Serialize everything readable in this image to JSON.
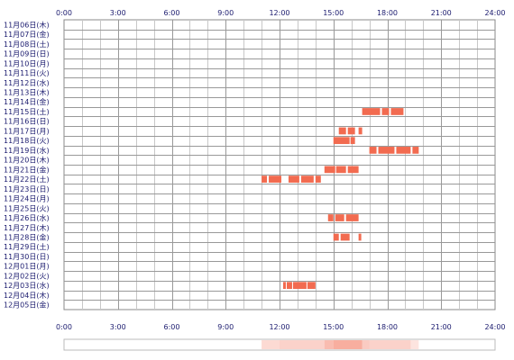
{
  "chart_data": {
    "type": "timeline",
    "x_ticks": [
      "0:00",
      "3:00",
      "6:00",
      "9:00",
      "12:00",
      "15:00",
      "18:00",
      "21:00",
      "24:00"
    ],
    "xlim": [
      0,
      24
    ],
    "grid": true,
    "bar_color": "#f26b50",
    "rows": [
      {
        "label": "11月06日(木)",
        "segments": []
      },
      {
        "label": "11月07日(金)",
        "segments": []
      },
      {
        "label": "11月08日(土)",
        "segments": []
      },
      {
        "label": "11月09日(日)",
        "segments": []
      },
      {
        "label": "11月10日(月)",
        "segments": []
      },
      {
        "label": "11月11日(火)",
        "segments": []
      },
      {
        "label": "11月12日(水)",
        "segments": []
      },
      {
        "label": "11月13日(木)",
        "segments": []
      },
      {
        "label": "11月14日(金)",
        "segments": []
      },
      {
        "label": "11月15日(土)",
        "segments": [
          [
            16.6,
            17.6
          ],
          [
            17.7,
            18.1
          ],
          [
            18.2,
            18.9
          ]
        ]
      },
      {
        "label": "11月16日(日)",
        "segments": []
      },
      {
        "label": "11月17日(月)",
        "segments": [
          [
            15.3,
            15.7
          ],
          [
            15.8,
            16.2
          ],
          [
            16.4,
            16.6
          ]
        ]
      },
      {
        "label": "11月18日(火)",
        "segments": [
          [
            15.0,
            15.9
          ],
          [
            15.95,
            16.2
          ]
        ]
      },
      {
        "label": "11月19日(水)",
        "segments": [
          [
            17.0,
            17.4
          ],
          [
            17.5,
            18.4
          ],
          [
            18.5,
            19.3
          ],
          [
            19.4,
            19.75
          ]
        ]
      },
      {
        "label": "11月20日(木)",
        "segments": []
      },
      {
        "label": "11月21日(金)",
        "segments": [
          [
            14.5,
            15.1
          ],
          [
            15.15,
            15.7
          ],
          [
            15.8,
            16.4
          ]
        ]
      },
      {
        "label": "11月22日(土)",
        "segments": [
          [
            11.0,
            11.3
          ],
          [
            11.4,
            12.1
          ],
          [
            12.5,
            13.1
          ],
          [
            13.2,
            13.9
          ],
          [
            14.0,
            14.3
          ]
        ]
      },
      {
        "label": "11月23日(日)",
        "segments": []
      },
      {
        "label": "11月24日(月)",
        "segments": []
      },
      {
        "label": "11月25日(火)",
        "segments": []
      },
      {
        "label": "11月26日(水)",
        "segments": [
          [
            14.7,
            15.0
          ],
          [
            15.1,
            15.6
          ],
          [
            15.7,
            16.4
          ]
        ]
      },
      {
        "label": "11月27日(木)",
        "segments": []
      },
      {
        "label": "11月28日(金)",
        "segments": [
          [
            15.0,
            15.3
          ],
          [
            15.4,
            15.9
          ],
          [
            16.4,
            16.55
          ]
        ]
      },
      {
        "label": "11月29日(土)",
        "segments": []
      },
      {
        "label": "11月30日(日)",
        "segments": []
      },
      {
        "label": "12月01日(月)",
        "segments": []
      },
      {
        "label": "12月02日(火)",
        "segments": []
      },
      {
        "label": "12月03日(水)",
        "segments": [
          [
            12.2,
            12.35
          ],
          [
            12.4,
            12.7
          ],
          [
            12.75,
            13.5
          ],
          [
            13.55,
            14.0
          ]
        ]
      },
      {
        "label": "12月04日(木)",
        "segments": []
      },
      {
        "label": "12月05日(金)",
        "segments": []
      }
    ],
    "summary_strip": [
      {
        "start": 11.0,
        "end": 12.0,
        "intensity": 0.25
      },
      {
        "start": 12.0,
        "end": 14.5,
        "intensity": 0.3
      },
      {
        "start": 14.5,
        "end": 15.0,
        "intensity": 0.45
      },
      {
        "start": 15.0,
        "end": 16.6,
        "intensity": 0.55
      },
      {
        "start": 16.6,
        "end": 17.0,
        "intensity": 0.35
      },
      {
        "start": 17.0,
        "end": 19.3,
        "intensity": 0.3
      },
      {
        "start": 19.3,
        "end": 19.75,
        "intensity": 0.18
      }
    ]
  }
}
